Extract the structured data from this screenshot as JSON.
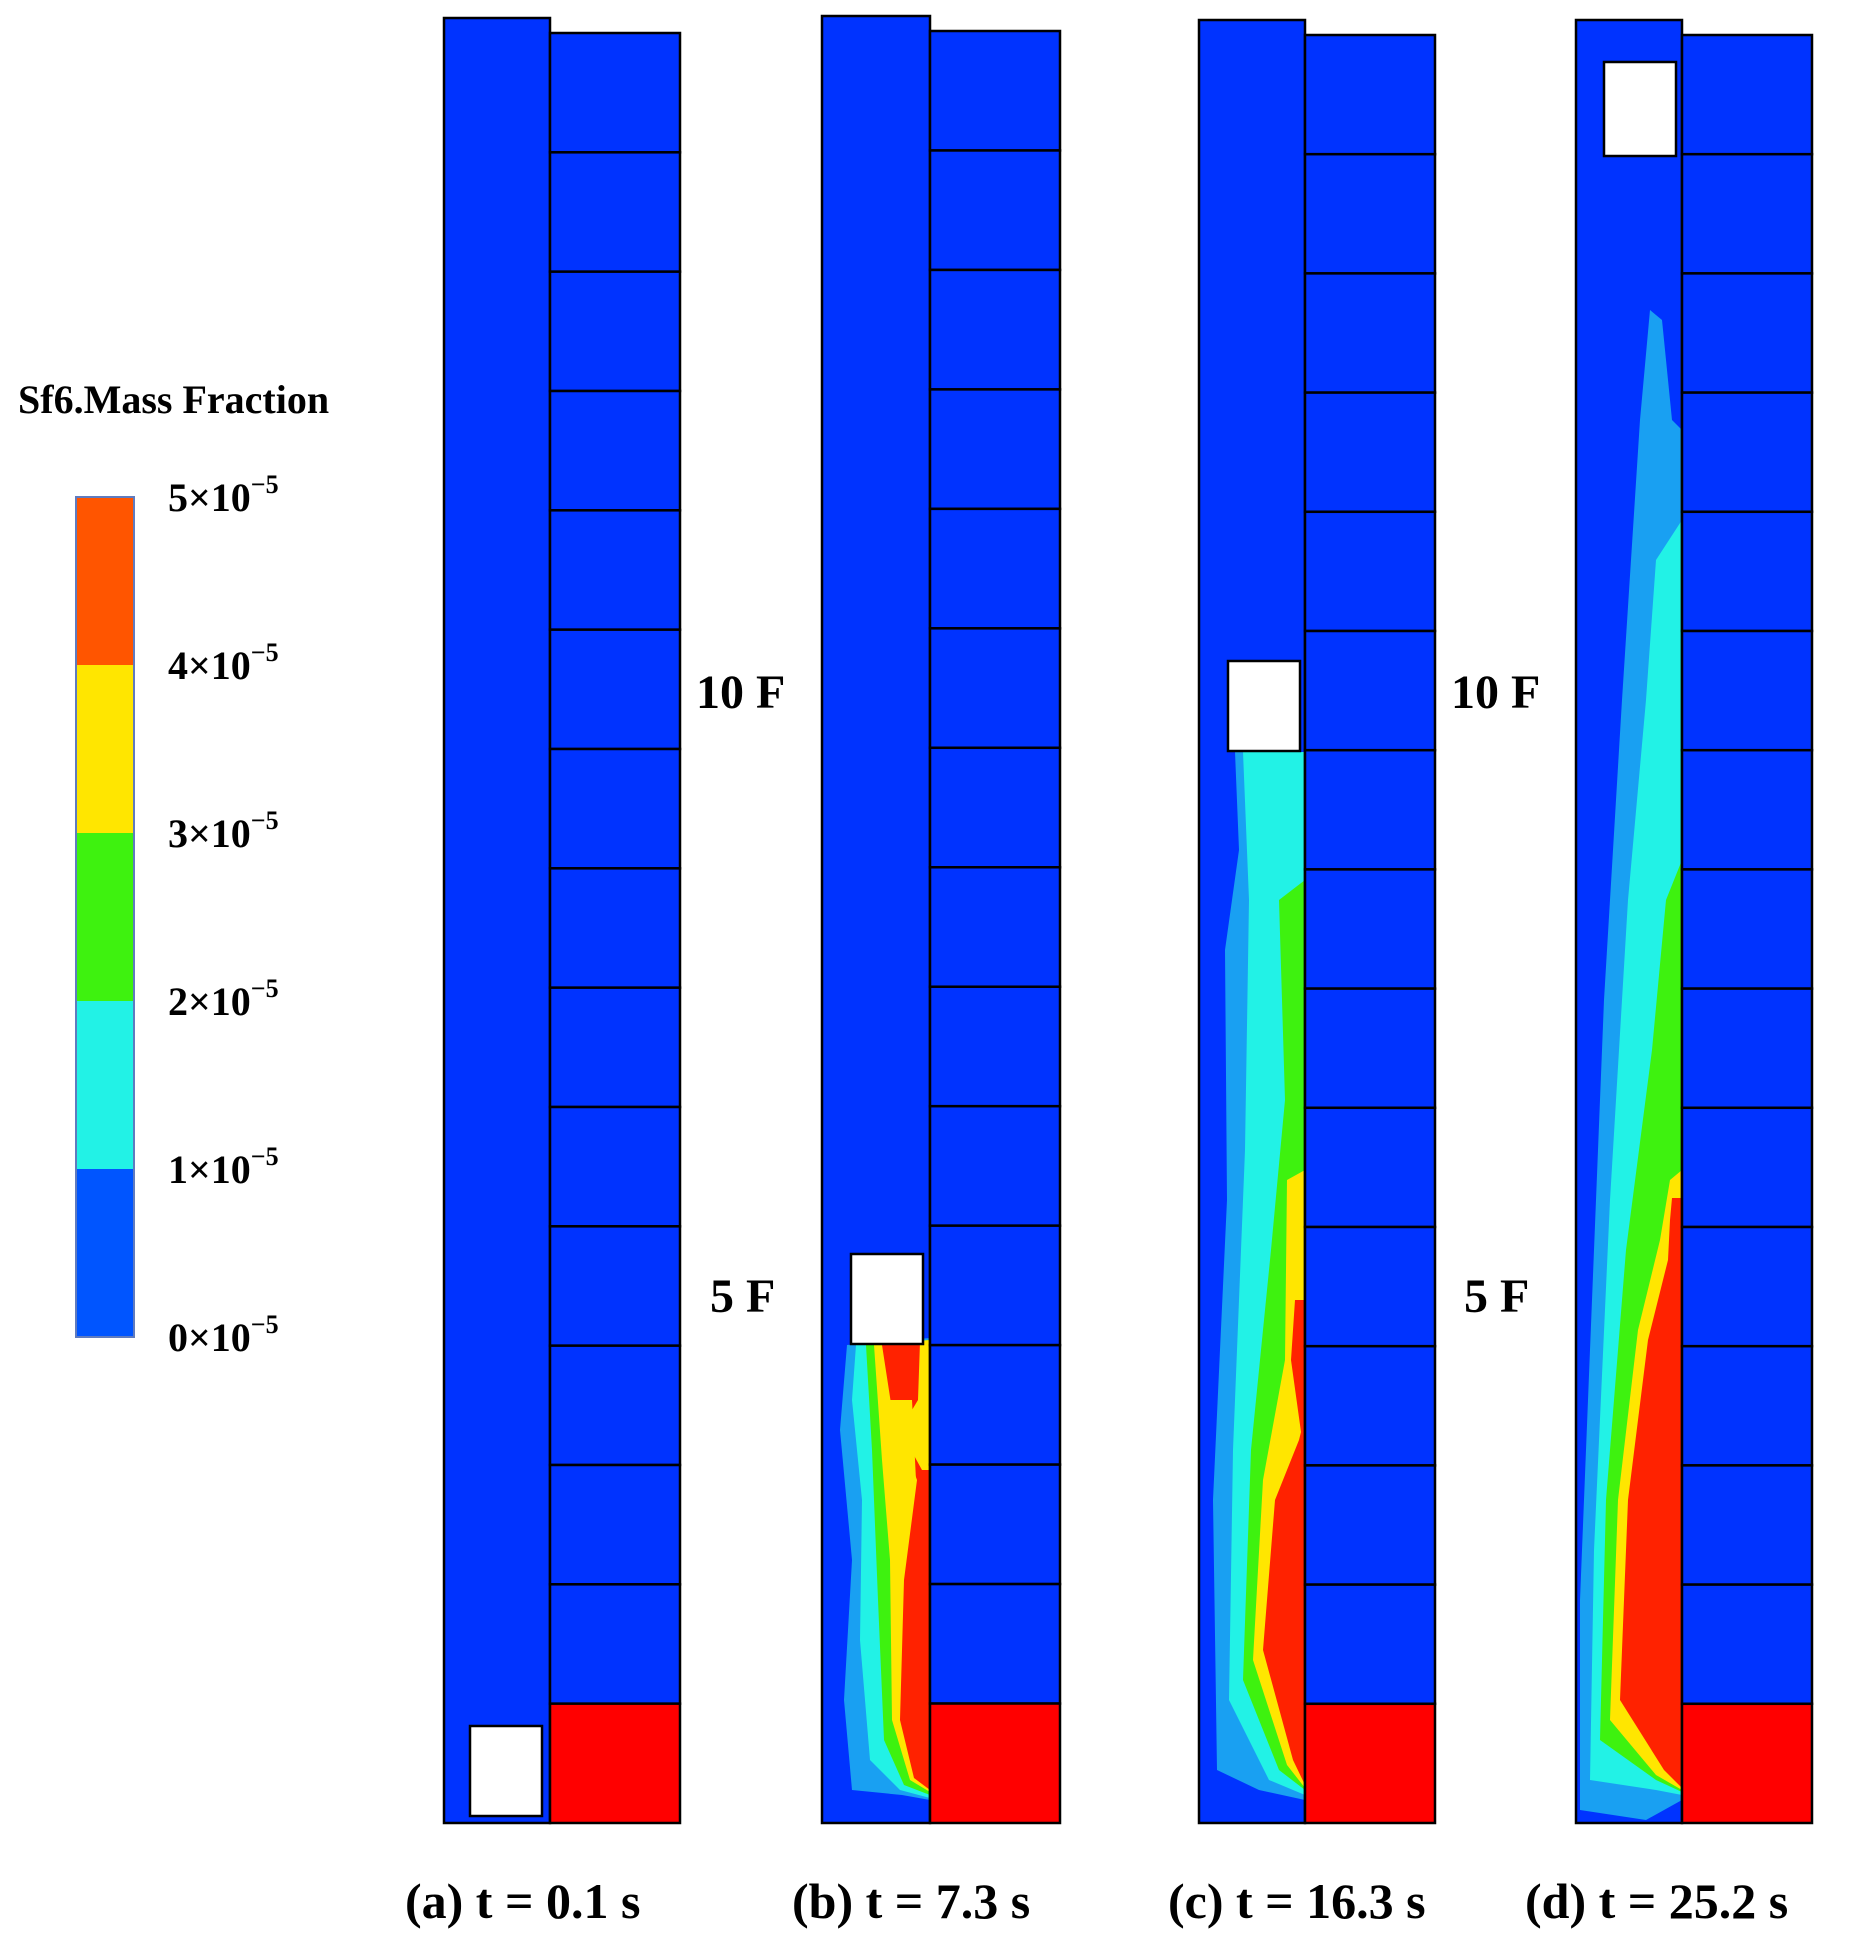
{
  "legend": {
    "title": "Sf6.Mass Fraction",
    "ticks": [
      {
        "label": "5×10",
        "exp": "−5"
      },
      {
        "label": "4×10",
        "exp": "−5"
      },
      {
        "label": "3×10",
        "exp": "−5"
      },
      {
        "label": "2×10",
        "exp": "−5"
      },
      {
        "label": "1×10",
        "exp": "−5"
      },
      {
        "label": "0×10",
        "exp": "−5"
      }
    ],
    "colors": [
      "#ff5500",
      "#ffe600",
      "#3ef20f",
      "#22f2e6",
      "#0055ff"
    ]
  },
  "colors": {
    "background": "#0033ff",
    "level_1": "#19a0f2",
    "level_2": "#22f2e6",
    "level_3": "#3ef20f",
    "level_4": "#ffe600",
    "level_5": "#ff2200",
    "source": "#ff0000",
    "outline": "#000000"
  },
  "floor_labels": {
    "ten": "10 F",
    "five": "5 F"
  },
  "panels": [
    {
      "id": "a",
      "caption": "(a) t = 0.1 s",
      "time_s": 0.1
    },
    {
      "id": "b",
      "caption": "(b) t = 7.3 s",
      "time_s": 7.3
    },
    {
      "id": "c",
      "caption": "(c) t = 16.3 s",
      "time_s": 16.3
    },
    {
      "id": "d",
      "caption": "(d) t = 25.2 s",
      "time_s": 25.2
    }
  ]
}
